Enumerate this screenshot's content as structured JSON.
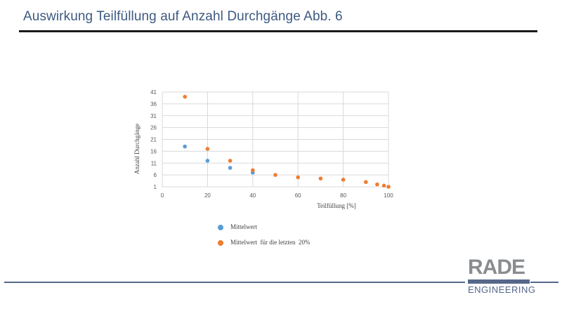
{
  "slide": {
    "title": "Auswirkung Teilfüllung auf Anzahl Durchgänge Abb. 6"
  },
  "chart_data": {
    "type": "scatter",
    "title": "",
    "xlabel": "Teilfüllung [%]",
    "ylabel": "Anzahl Durchgänge",
    "xlim": [
      0,
      100
    ],
    "ylim": [
      1,
      41
    ],
    "xticks": [
      0,
      20,
      40,
      60,
      80,
      100
    ],
    "yticks": [
      1,
      6,
      11,
      16,
      21,
      26,
      31,
      36,
      41
    ],
    "grid": true,
    "legend_position": "bottom-left",
    "series": [
      {
        "name": "Mittelwert",
        "color": "#5b9bd5",
        "points": [
          [
            10,
            18
          ],
          [
            20,
            12
          ],
          [
            30,
            9
          ],
          [
            40,
            7
          ]
        ]
      },
      {
        "name": "Mittelwert  für die letzten  20%",
        "color": "#ed7d31",
        "points": [
          [
            10,
            39
          ],
          [
            20,
            17
          ],
          [
            30,
            12
          ],
          [
            40,
            8
          ],
          [
            50,
            6
          ],
          [
            60,
            5
          ],
          [
            70,
            4.5
          ],
          [
            80,
            4
          ],
          [
            90,
            3
          ],
          [
            95,
            2
          ],
          [
            98,
            1.5
          ],
          [
            100,
            1
          ]
        ]
      }
    ]
  },
  "logo": {
    "main": "RADE",
    "sub": "ENGINEERING"
  }
}
